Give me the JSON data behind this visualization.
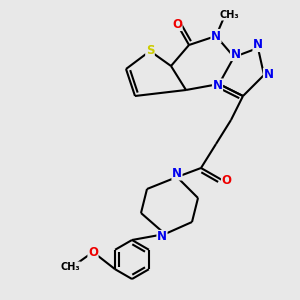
{
  "bg_color": "#e8e8e8",
  "atom_colors": {
    "C": "#000000",
    "N": "#0000ee",
    "O": "#ee0000",
    "S": "#cccc00"
  },
  "bond_color": "#000000",
  "bond_width": 1.5,
  "font_size_atom": 8.5
}
